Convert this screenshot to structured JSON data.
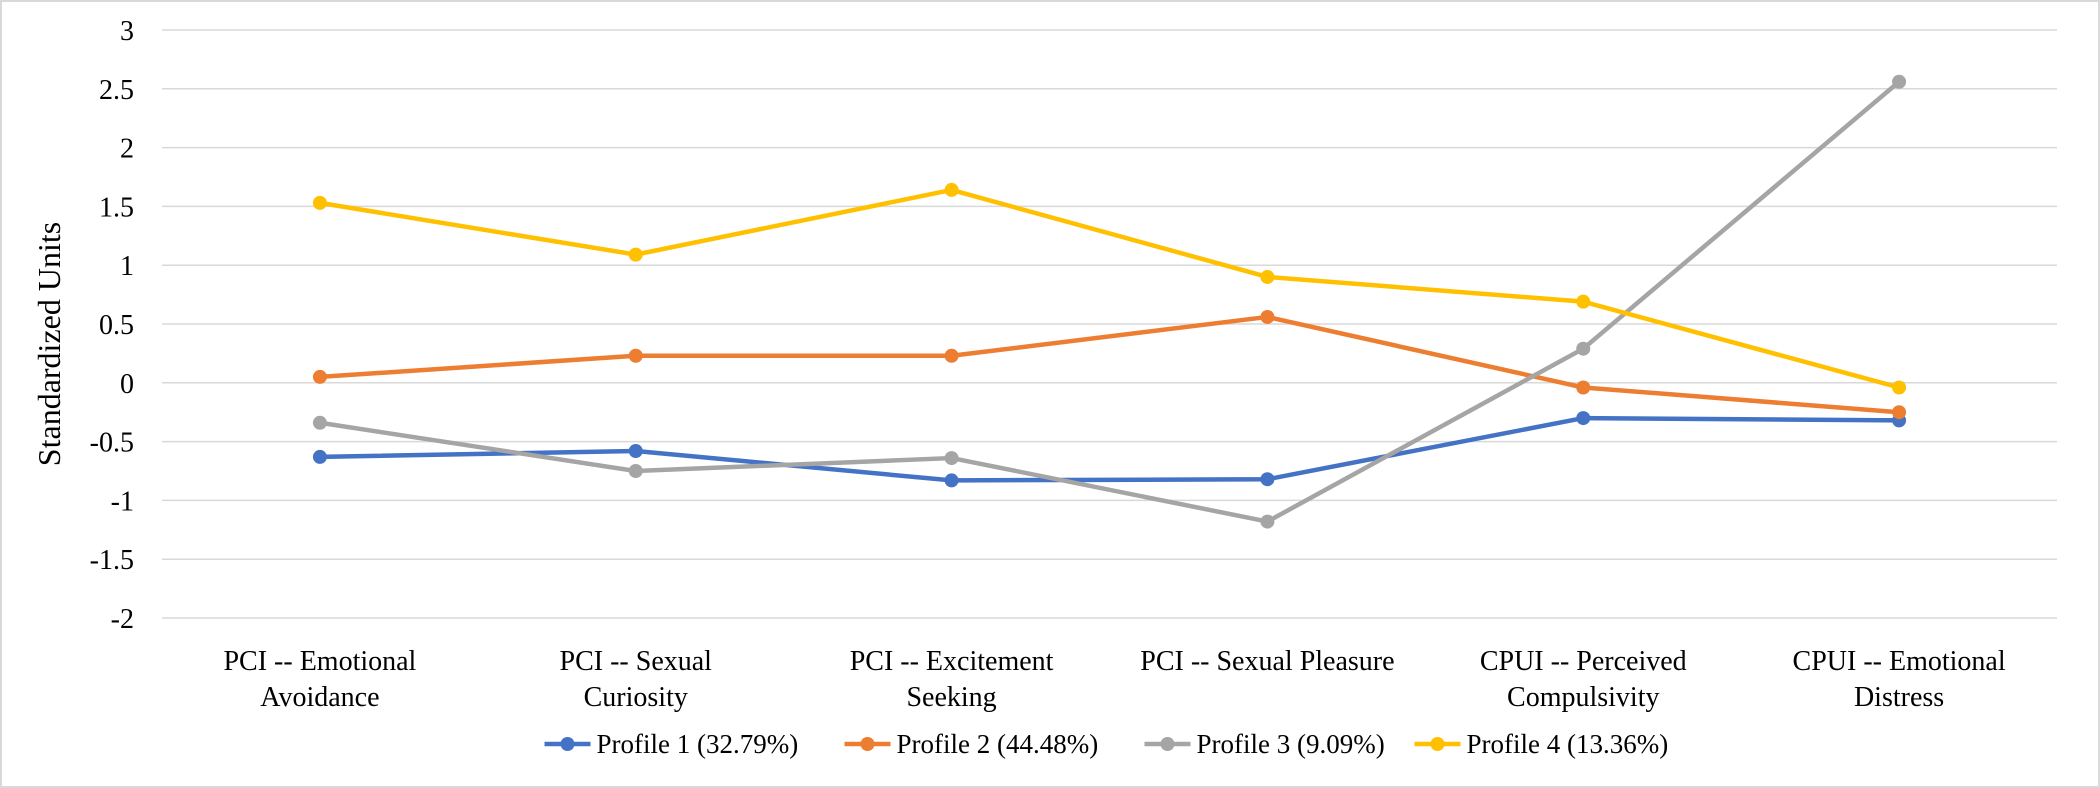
{
  "chart_data": {
    "type": "line",
    "title": "",
    "xlabel": "",
    "ylabel": "Standardized Units",
    "ylim": [
      -2,
      3
    ],
    "ytick_step": 0.5,
    "grid": true,
    "legend_position": "bottom",
    "categories": [
      [
        "PCI -- Emotional",
        "Avoidance"
      ],
      [
        "PCI -- Sexual",
        "Curiosity"
      ],
      [
        "PCI -- Excitement",
        "Seeking"
      ],
      [
        "PCI -- Sexual Pleasure"
      ],
      [
        "CPUI -- Perceived",
        "Compulsivity"
      ],
      [
        "CPUI -- Emotional",
        "Distress"
      ]
    ],
    "series": [
      {
        "name": "Profile 1 (32.79%)",
        "color": "#4472C4",
        "values": [
          -0.63,
          -0.58,
          -0.83,
          -0.82,
          -0.3,
          -0.32
        ]
      },
      {
        "name": "Profile 2 (44.48%)",
        "color": "#ED7D31",
        "values": [
          0.05,
          0.23,
          0.23,
          0.56,
          -0.04,
          -0.25
        ]
      },
      {
        "name": "Profile 3 (9.09%)",
        "color": "#A5A5A5",
        "values": [
          -0.34,
          -0.75,
          -0.64,
          -1.18,
          0.29,
          2.56
        ]
      },
      {
        "name": "Profile 4 (13.36%)",
        "color": "#FFC000",
        "values": [
          1.53,
          1.09,
          1.64,
          0.9,
          0.69,
          -0.04
        ]
      }
    ]
  }
}
